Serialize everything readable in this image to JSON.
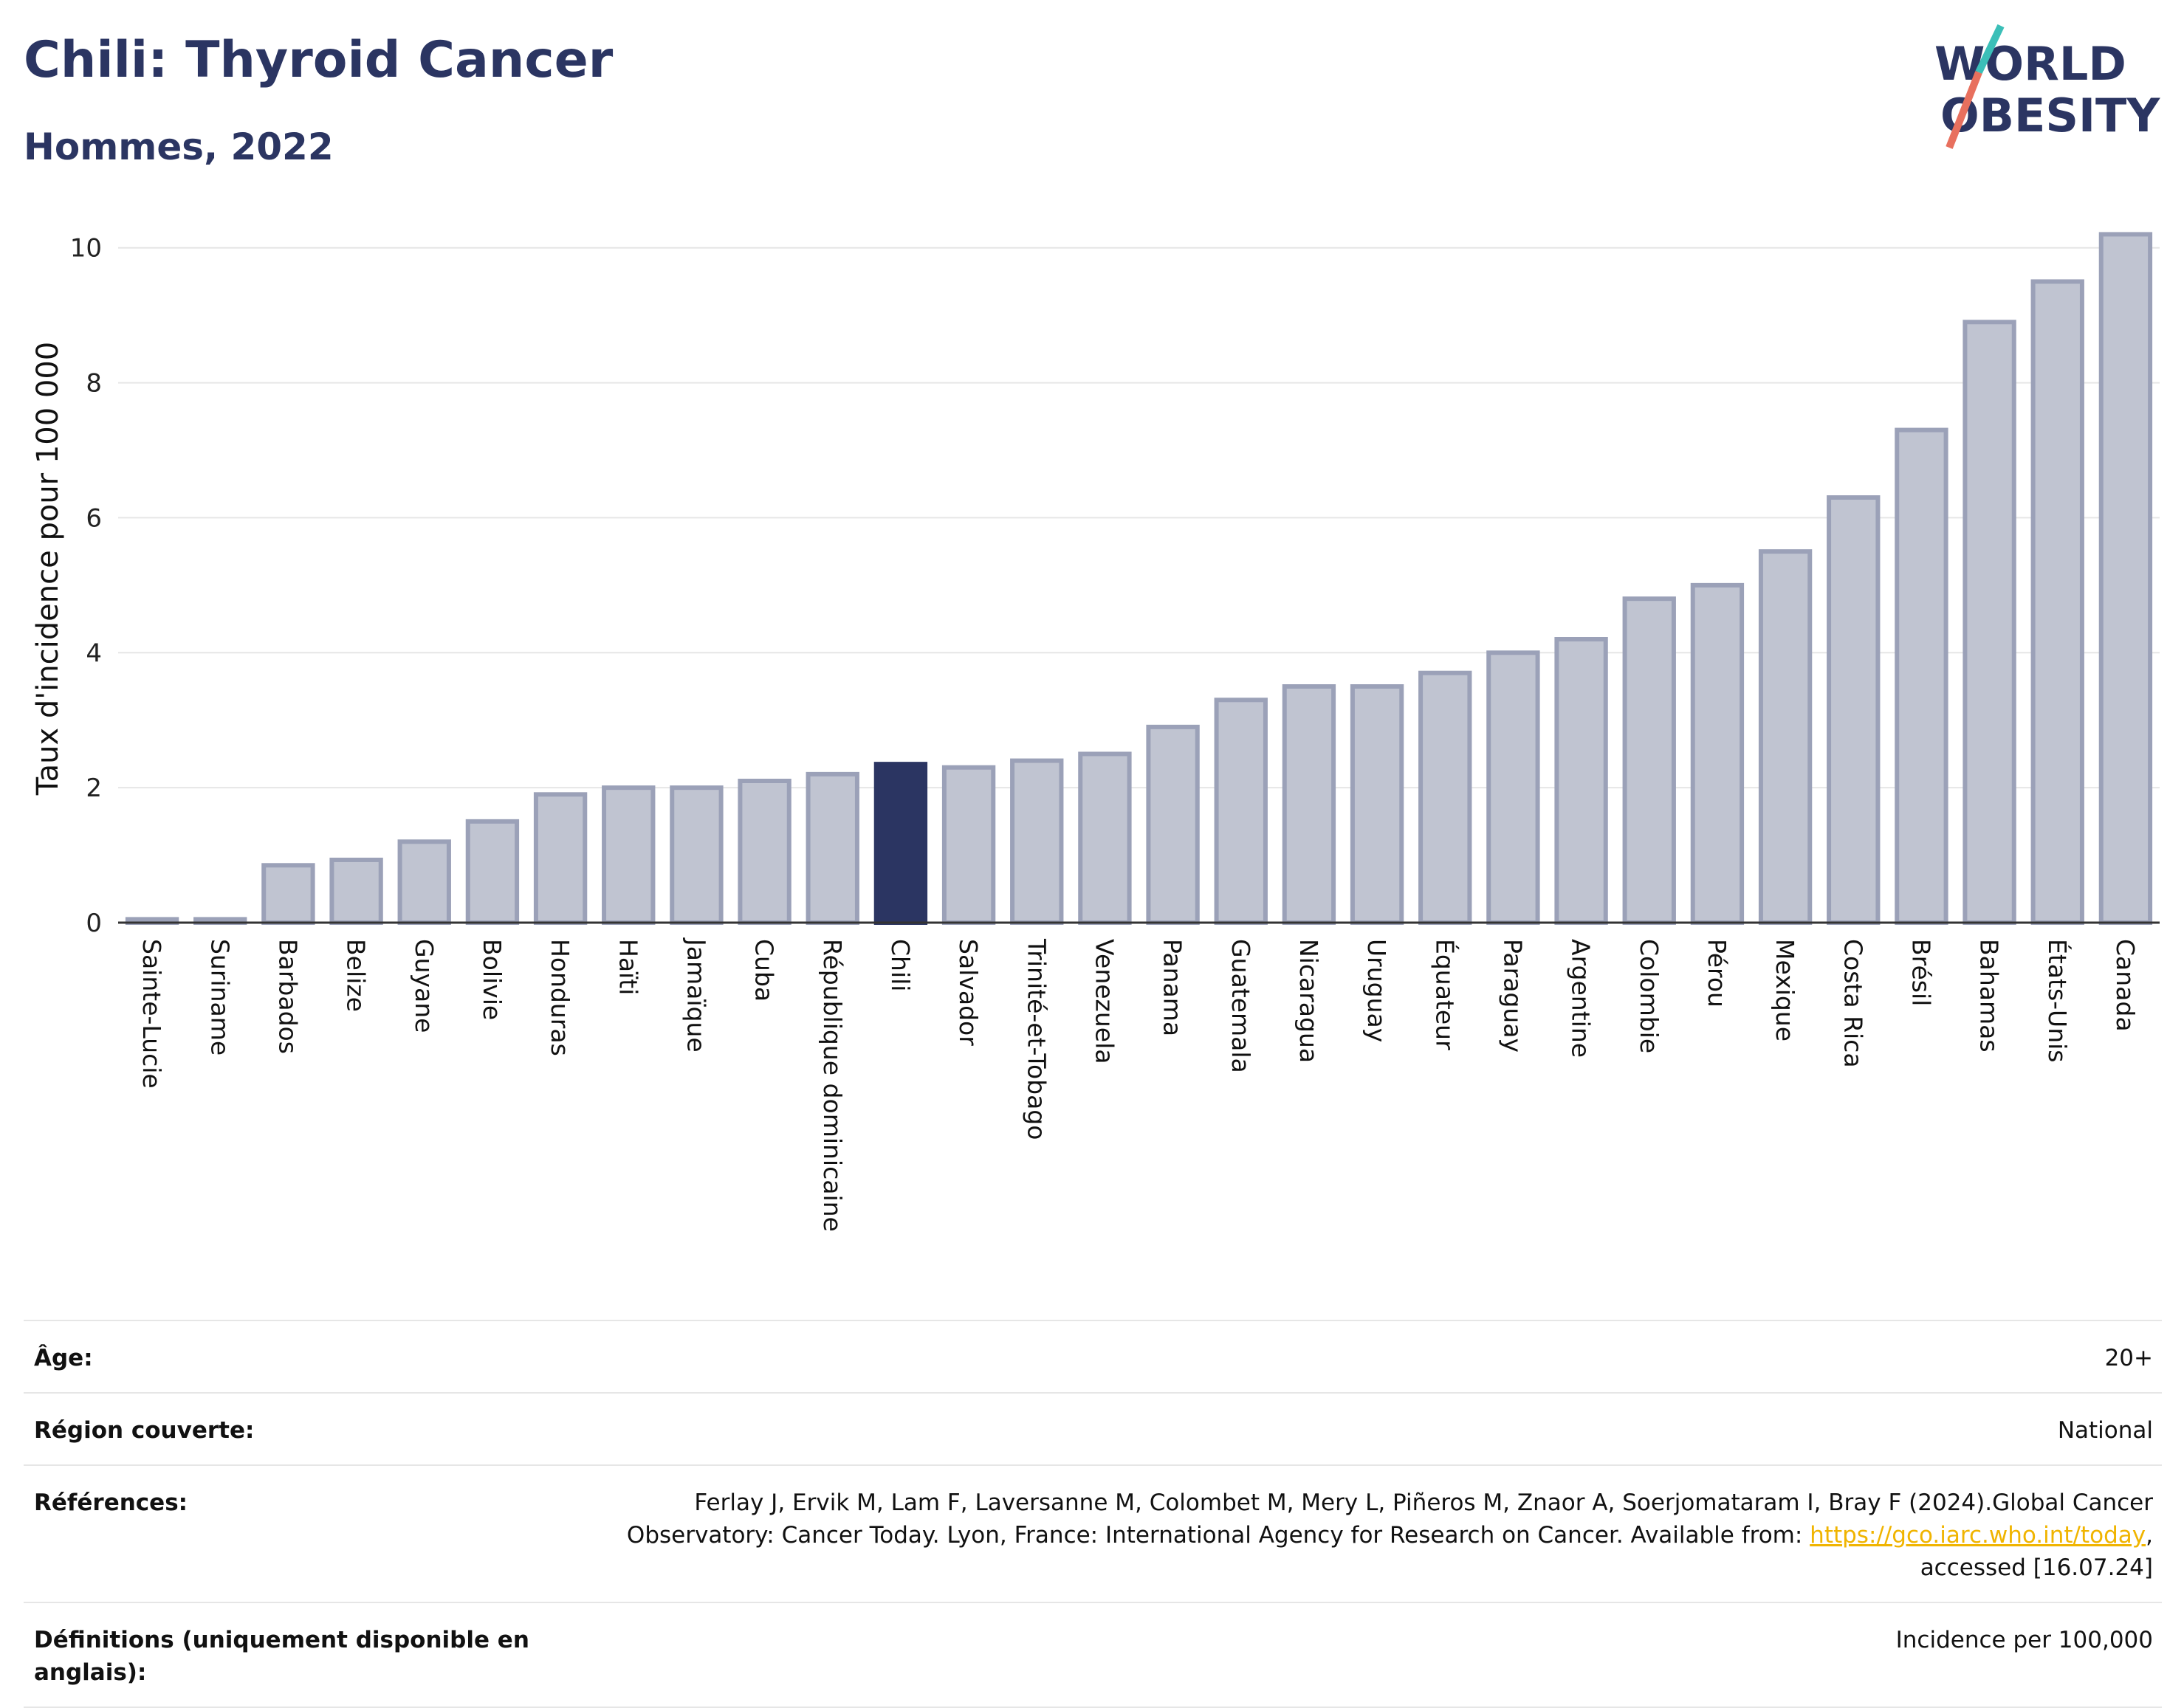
{
  "title": "Chili: Thyroid Cancer",
  "subtitle": "Hommes, 2022",
  "logo": {
    "line1": "WORLD",
    "line2": "OBESITY"
  },
  "colors": {
    "highlight": "#2b3562",
    "bar": "#c0c4d1",
    "bar_border": "#9ba1b8",
    "title": "#2b3562",
    "link": "#f0b400"
  },
  "chart_data": {
    "type": "bar",
    "ylabel": "Taux d'incidence pour 100 000",
    "ylim": [
      0,
      10.5
    ],
    "yticks": [
      0,
      2,
      4,
      6,
      8,
      10
    ],
    "grid": true,
    "highlight": "Chili",
    "categories": [
      "Sainte-Lucie",
      "Suriname",
      "Barbados",
      "Belize",
      "Guyane",
      "Bolivie",
      "Honduras",
      "Haïti",
      "Jamaïque",
      "Cuba",
      "République dominicaine",
      "Chili",
      "Salvador",
      "Trinité-et-Tobago",
      "Venezuela",
      "Panama",
      "Guatemala",
      "Nicaragua",
      "Uruguay",
      "Équateur",
      "Paraguay",
      "Argentine",
      "Colombie",
      "Pérou",
      "Mexique",
      "Costa Rica",
      "Brésil",
      "Bahamas",
      "États-Unis",
      "Canada"
    ],
    "values": [
      0.05,
      0.05,
      0.85,
      0.93,
      1.2,
      1.5,
      1.9,
      2.0,
      2.0,
      2.1,
      2.2,
      2.35,
      2.3,
      2.4,
      2.5,
      2.9,
      3.3,
      3.5,
      3.5,
      3.7,
      4.0,
      4.2,
      4.8,
      5.0,
      5.5,
      6.3,
      7.3,
      8.9,
      9.5,
      10.2
    ]
  },
  "meta": {
    "age_label": "Âge:",
    "age_value": "20+",
    "region_label": "Région couverte:",
    "region_value": "National",
    "ref_label": "Références:",
    "ref_text_1": "Ferlay J, Ervik M, Lam F, Laversanne M, Colombet M, Mery L, Piñeros M, Znaor A, Soerjomataram I, Bray F (2024).Global Cancer Observatory: Cancer Today. Lyon, France: International Agency for Research on Cancer. Available from: ",
    "ref_link": "https://gco.iarc.who.int/today",
    "ref_text_2": ", accessed [16.07.24]",
    "def_label": "Définitions (uniquement disponible en anglais):",
    "def_value": "Incidence per 100,000"
  }
}
